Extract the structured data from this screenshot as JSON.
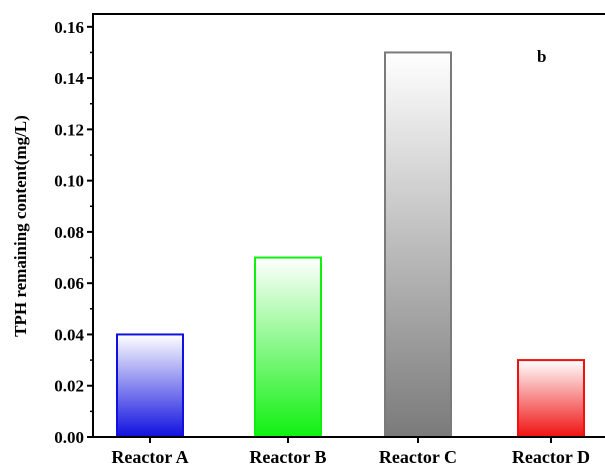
{
  "chart_data": {
    "type": "bar",
    "categories": [
      "Reactor A",
      "Reactor B",
      "Reactor C",
      "Reactor D"
    ],
    "values": [
      0.04,
      0.07,
      0.15,
      0.03
    ],
    "ylabel": "TPH remaining content(mg/L)",
    "xlabel": "",
    "ylim": [
      0,
      0.165
    ],
    "yticks": [
      "0.00",
      "0.02",
      "0.04",
      "0.06",
      "0.08",
      "0.10",
      "0.12",
      "0.14",
      "0.16"
    ],
    "grid": false,
    "panel_label": "b",
    "colors": {
      "Reactor A": "#1010e0",
      "Reactor B": "#10f010",
      "Reactor C": "#7a7a7a",
      "Reactor D": "#f01010"
    }
  }
}
